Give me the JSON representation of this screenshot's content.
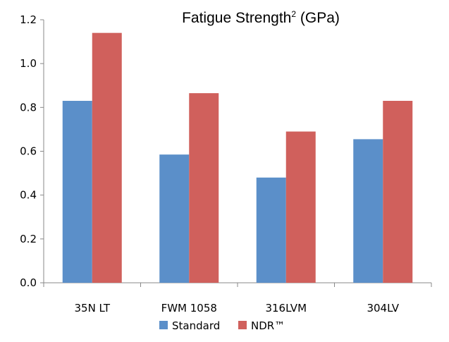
{
  "chart_data": {
    "type": "bar",
    "title": "Fatigue Strength",
    "title_superscript": "2",
    "title_unit": " (GPa)",
    "categories": [
      "35N LT",
      "FWM 1058",
      "316LVM",
      "304LV"
    ],
    "series": [
      {
        "name": "Standard",
        "values": [
          0.83,
          0.585,
          0.48,
          0.655
        ],
        "color": "#5b8fc9"
      },
      {
        "name": "NDR™",
        "values": [
          1.14,
          0.865,
          0.69,
          0.83
        ],
        "color": "#d0605c"
      }
    ],
    "ylim": [
      0,
      1.2
    ],
    "yticks": [
      "0.0",
      "0.2",
      "0.4",
      "0.6",
      "0.8",
      "1.0",
      "1.2"
    ],
    "grid": false,
    "legend_position": "bottom"
  }
}
